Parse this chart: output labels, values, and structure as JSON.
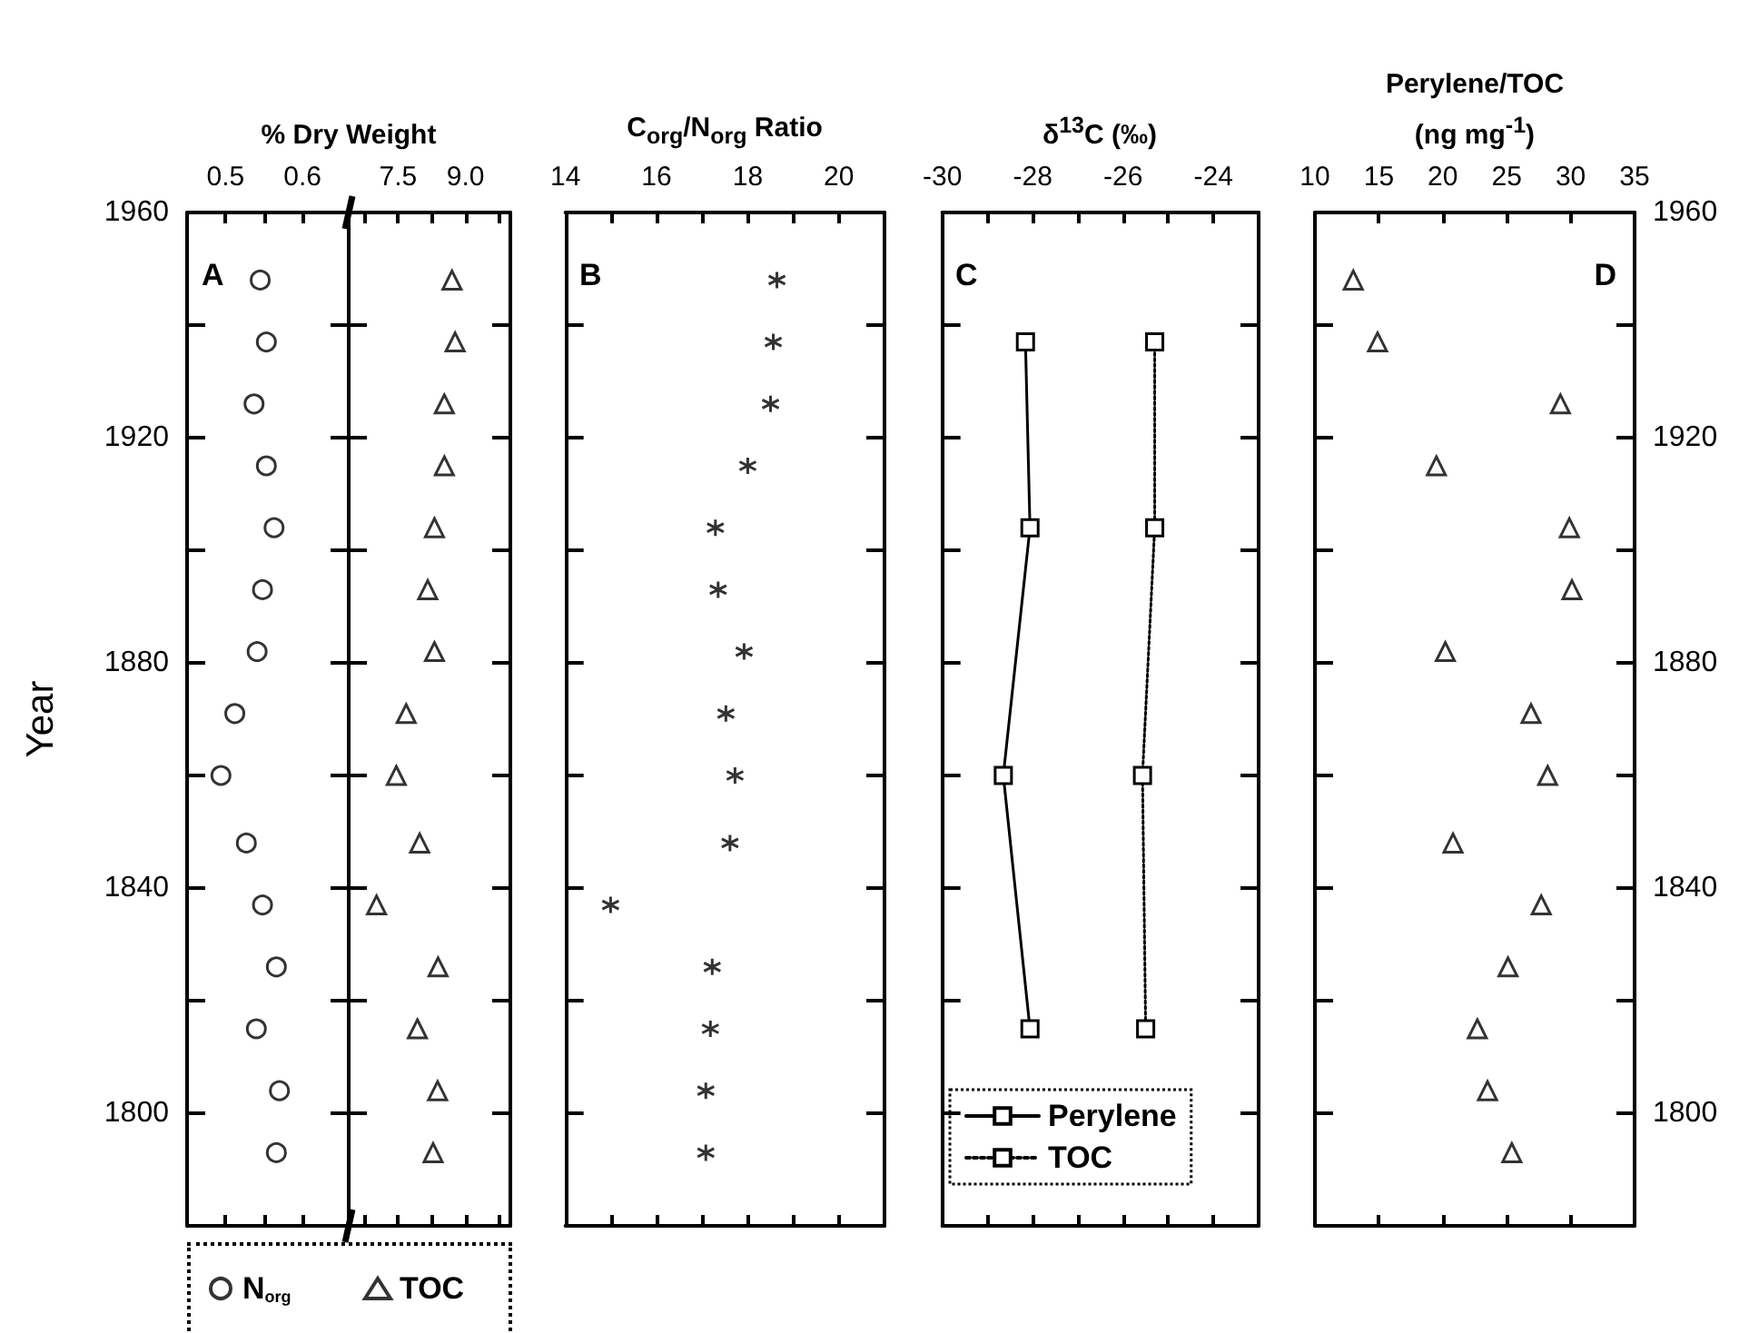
{
  "chart_data": [
    {
      "type": "scatter",
      "xlabel": "% Dry Weight",
      "ylabel": "Year",
      "annotations": [
        "A"
      ],
      "legend": "bottom",
      "xlim": [
        0.45,
        0.66
      ],
      "xticks": [
        0.5,
        {
          "value": 0.55,
          "label": null
        },
        0.6
      ],
      "ylim": [
        1780,
        1960
      ],
      "yticks": [
        1800,
        {
          "value": 1820,
          "label": null
        },
        1840,
        {
          "value": 1860,
          "label": null
        },
        1880,
        {
          "value": 1900,
          "label": null
        },
        1920,
        {
          "value": 1940,
          "label": null
        },
        1960
      ],
      "series": [
        {
          "name": "N$_{org}$",
          "color": "#000000",
          "marker": "circle",
          "x": [
            0.545,
            0.553,
            0.537,
            0.553,
            0.563,
            0.548,
            0.541,
            0.512,
            0.494,
            0.527,
            0.548,
            0.566,
            0.54,
            0.57,
            0.566
          ],
          "values": [
            1948,
            1937,
            1926,
            1915,
            1904,
            1893,
            1882,
            1871,
            1860,
            1848,
            1837,
            1826,
            1815,
            1804,
            1793
          ]
        }
      ]
    },
    {
      "type": "scatter",
      "legend": "bottom",
      "tick_labels": "x",
      "xlim": [
        6.4,
        10.0
      ],
      "xticks": [
        {
          "value": 6.75,
          "label": null
        },
        7.5,
        {
          "value": 8.25,
          "label": null
        },
        {
          "value": 9.0,
          "label": "9.0"
        },
        {
          "value": 9.75,
          "label": null
        }
      ],
      "ylim": [
        1780,
        1960
      ],
      "yticks": [
        1800,
        {
          "value": 1820,
          "label": null
        },
        1840,
        {
          "value": 1860,
          "label": null
        },
        1880,
        {
          "value": 1900,
          "label": null
        },
        1920,
        {
          "value": 1940,
          "label": null
        },
        1960
      ],
      "series": [
        {
          "name": "TOC",
          "color": "#000000",
          "marker": "triangle",
          "x": [
            8.7,
            8.77,
            8.53,
            8.53,
            8.31,
            8.16,
            8.31,
            7.68,
            7.46,
            7.98,
            7.02,
            8.39,
            7.93,
            8.38,
            8.28
          ],
          "values": [
            1948,
            1937,
            1926,
            1915,
            1904,
            1893,
            1882,
            1871,
            1860,
            1848,
            1837,
            1826,
            1815,
            1804,
            1793
          ]
        }
      ]
    },
    {
      "type": "scatter",
      "xlabel": "C$_{org}$/N$_{org}$ Ratio",
      "annotations": [
        "B"
      ],
      "tick_labels": "x",
      "xlim": [
        14,
        21
      ],
      "xticks": [
        14,
        {
          "value": 15,
          "label": null
        },
        16,
        {
          "value": 17,
          "label": null
        },
        18,
        {
          "value": 19,
          "label": null
        },
        20
      ],
      "ylim": [
        1780,
        1960
      ],
      "yticks": [
        1800,
        {
          "value": 1820,
          "label": null
        },
        1840,
        {
          "value": 1860,
          "label": null
        },
        1880,
        {
          "value": 1900,
          "label": null
        },
        1920,
        {
          "value": 1940,
          "label": null
        },
        1960
      ],
      "series": [
        {
          "color": "#000000",
          "marker": "cross",
          "x": [
            18.64,
            18.56,
            18.5,
            18.0,
            17.29,
            17.35,
            17.92,
            17.52,
            17.72,
            17.61,
            14.99,
            17.22,
            17.18,
            17.08,
            17.08
          ],
          "values": [
            1948,
            1937,
            1926,
            1915,
            1904,
            1893,
            1882,
            1871,
            1860,
            1848,
            1837,
            1826,
            1815,
            1804,
            1793
          ]
        }
      ]
    },
    {
      "type": "line",
      "xlabel": "δ$^{13}$C (‰)",
      "annotations": [
        "C"
      ],
      "legend": "bottom",
      "tick_labels": "x",
      "xlim": [
        -30,
        -23
      ],
      "xticks": [
        -30,
        {
          "value": -29,
          "label": null
        },
        -28,
        {
          "value": -27,
          "label": null
        },
        -26,
        {
          "value": -25,
          "label": null
        },
        -24
      ],
      "ylim": [
        1780,
        1960
      ],
      "yticks": [
        1800,
        {
          "value": 1820,
          "label": null
        },
        1840,
        {
          "value": 1860,
          "label": null
        },
        1880,
        {
          "value": 1900,
          "label": null
        },
        1920,
        {
          "value": 1940,
          "label": null
        },
        1960
      ],
      "series": [
        {
          "name": "Perylene",
          "color": "#000000",
          "marker": "square",
          "line_style": "solid",
          "x": [
            -28.16,
            -28.06,
            -28.65,
            -28.06
          ],
          "values": [
            1937,
            1904,
            1860,
            1815
          ]
        },
        {
          "name": "TOC",
          "color": "#000000",
          "marker": "square",
          "line_style": "dotted",
          "x": [
            -25.3,
            -25.3,
            -25.57,
            -25.5
          ],
          "values": [
            1937,
            1904,
            1860,
            1815
          ]
        }
      ]
    },
    {
      "type": "scatter",
      "xlabel": "Perylene/TOC\n(ng mg$^{-1}$)",
      "annotations": [
        "D"
      ],
      "xlim": [
        10,
        35
      ],
      "xticks": [
        10,
        15,
        20,
        25,
        30,
        35
      ],
      "ylim": [
        1780,
        1960
      ],
      "yticks": [
        1800,
        {
          "value": 1820,
          "label": null
        },
        1840,
        {
          "value": 1860,
          "label": null
        },
        1880,
        {
          "value": 1900,
          "label": null
        },
        1920,
        {
          "value": 1940,
          "label": null
        },
        1960
      ],
      "series": [
        {
          "color": "#000000",
          "marker": "triangle",
          "x": [
            13.0,
            14.9,
            29.2,
            19.5,
            29.9,
            30.1,
            20.2,
            26.9,
            28.2,
            20.8,
            27.7,
            25.1,
            22.7,
            23.5,
            25.4
          ],
          "values": [
            1948,
            1937,
            1926,
            1915,
            1904,
            1893,
            1882,
            1871,
            1860,
            1848,
            1837,
            1826,
            1815,
            1804,
            1793
          ]
        }
      ]
    }
  ]
}
